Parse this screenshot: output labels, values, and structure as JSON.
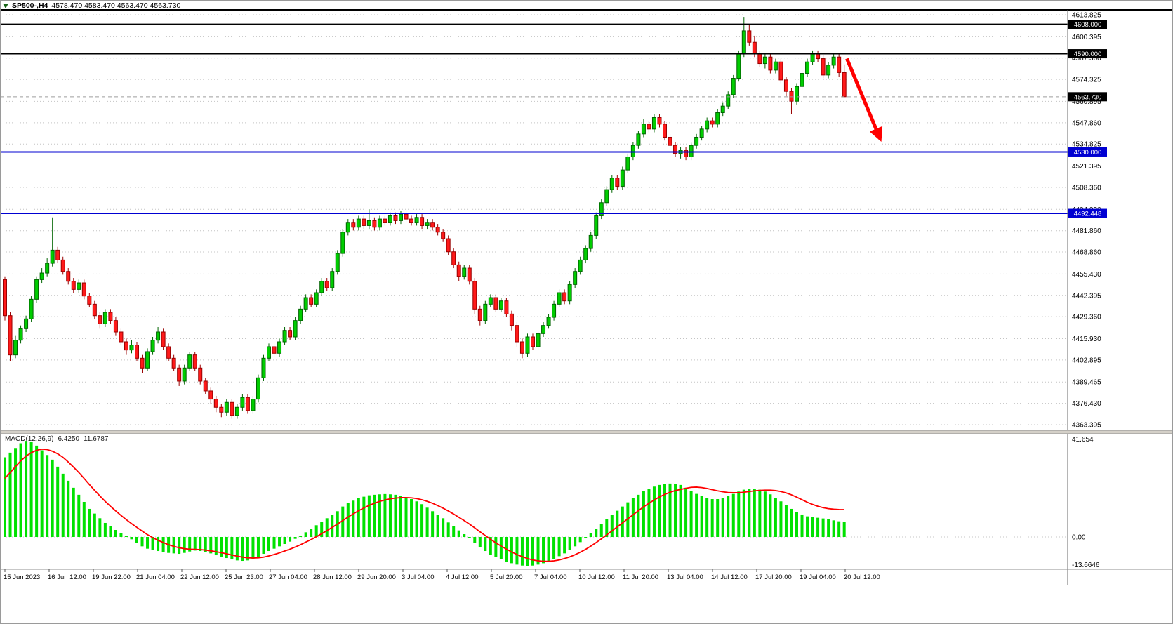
{
  "header": {
    "symbol_timeframe": "SP500-,H4",
    "ohlc_values": "4578.470 4583.470 4563.470 4563.730"
  },
  "macd_label": {
    "name": "MACD(12,26,9)",
    "macd_value": "6.4250",
    "signal_value": "11.6787"
  },
  "colors": {
    "background": "#FFFFFF",
    "grid": "#C4C4C4",
    "axis_text": "#000000",
    "bull_fill": "#00CD00",
    "bull_stroke": "#006400",
    "bear_fill": "#FF1A1A",
    "bear_stroke": "#990000",
    "macd_hist": "#00E100",
    "macd_signal": "#FF0000",
    "badge_text": "#FFFFFF",
    "splitter": "#D4D0C8",
    "frame": "#6B6B6B"
  },
  "chart_data": {
    "type": "candlestick",
    "symbol": "SP500-",
    "timeframe": "H4",
    "title": "SP500-,H4",
    "last_candle": {
      "open": 4578.47,
      "high": 4583.47,
      "low": 4563.47,
      "close": 4563.73
    },
    "price_axis": {
      "max": 4613.825,
      "min": 4363.395,
      "gridlines": [
        "4613.825",
        "4600.395",
        "4587.360",
        "4574.325",
        "4560.895",
        "4547.860",
        "4534.825",
        "4521.395",
        "4508.360",
        "4494.930",
        "4481.860",
        "4468.860",
        "4455.430",
        "4442.395",
        "4429.360",
        "4415.930",
        "4402.895",
        "4389.465",
        "4376.430",
        "4363.395"
      ]
    },
    "price_lines": [
      {
        "name": "resistance-line-4608",
        "price": 4608.0,
        "label": "4608.000",
        "color": "#000000",
        "badge_color": "#000000",
        "width": 2,
        "style": "solid"
      },
      {
        "name": "resistance-line-4590",
        "price": 4590.0,
        "label": "4590.000",
        "color": "#000000",
        "badge_color": "#000000",
        "width": 2,
        "style": "solid"
      },
      {
        "name": "bid-price-line",
        "price": 4563.73,
        "label": "4563.730",
        "color": "#9E9E9E",
        "badge_color": "#000000",
        "width": 1,
        "style": "dashed"
      },
      {
        "name": "support-line-4530",
        "price": 4530.0,
        "label": "4530.000",
        "color": "#0000D2",
        "badge_color": "#0000D2",
        "width": 2,
        "style": "solid"
      },
      {
        "name": "support-line-4492",
        "price": 4492.448,
        "label": "4492.448",
        "color": "#0000D2",
        "badge_color": "#0000D2",
        "width": 2,
        "style": "solid"
      }
    ],
    "time_labels": [
      "15 Jun 2023",
      "16 Jun 12:00",
      "19 Jun 22:00",
      "21 Jun 04:00",
      "22 Jun 12:00",
      "25 Jun 23:00",
      "27 Jun 04:00",
      "28 Jun 12:00",
      "29 Jun 20:00",
      "3 Jul 04:00",
      "4 Jul 12:00",
      "5 Jul 20:00",
      "7 Jul 04:00",
      "10 Jul 12:00",
      "11 Jul 20:00",
      "13 Jul 04:00",
      "14 Jul 12:00",
      "17 Jul 20:00",
      "19 Jul 04:00",
      "20 Jul 12:00"
    ],
    "candles": [
      [
        4452,
        4454,
        4427,
        4430
      ],
      [
        4430,
        4432,
        4402,
        4406
      ],
      [
        4406,
        4418,
        4404,
        4415
      ],
      [
        4415,
        4424,
        4413,
        4422
      ],
      [
        4422,
        4430,
        4420,
        4428
      ],
      [
        4428,
        4442,
        4426,
        4440
      ],
      [
        4440,
        4454,
        4438,
        4452
      ],
      [
        4452,
        4459,
        4450,
        4456
      ],
      [
        4456,
        4465,
        4454,
        4462
      ],
      [
        4462,
        4490,
        4460,
        4470
      ],
      [
        4470,
        4472,
        4462,
        4464
      ],
      [
        4464,
        4466,
        4455,
        4457
      ],
      [
        4457,
        4459,
        4449,
        4451
      ],
      [
        4451,
        4453,
        4444,
        4446
      ],
      [
        4446,
        4452,
        4444,
        4450
      ],
      [
        4450,
        4452,
        4440,
        4442
      ],
      [
        4442,
        4444,
        4435,
        4437
      ],
      [
        4437,
        4439,
        4428,
        4430
      ],
      [
        4430,
        4432,
        4422,
        4425
      ],
      [
        4425,
        4434,
        4423,
        4432
      ],
      [
        4432,
        4434,
        4425,
        4427
      ],
      [
        4427,
        4429,
        4418,
        4420
      ],
      [
        4420,
        4422,
        4412,
        4414
      ],
      [
        4414,
        4416,
        4406,
        4409
      ],
      [
        4409,
        4415,
        4407,
        4412
      ],
      [
        4412,
        4414,
        4402,
        4404
      ],
      [
        4404,
        4406,
        4395,
        4398
      ],
      [
        4398,
        4410,
        4396,
        4408
      ],
      [
        4408,
        4417,
        4406,
        4415
      ],
      [
        4415,
        4423,
        4413,
        4420
      ],
      [
        4420,
        4422,
        4409,
        4411
      ],
      [
        4411,
        4413,
        4402,
        4404
      ],
      [
        4404,
        4406,
        4396,
        4398
      ],
      [
        4398,
        4400,
        4387,
        4390
      ],
      [
        4390,
        4400,
        4388,
        4398
      ],
      [
        4398,
        4408,
        4396,
        4406
      ],
      [
        4406,
        4408,
        4396,
        4398
      ],
      [
        4398,
        4400,
        4388,
        4390
      ],
      [
        4390,
        4392,
        4382,
        4384
      ],
      [
        4384,
        4386,
        4376,
        4379
      ],
      [
        4379,
        4381,
        4371,
        4374
      ],
      [
        4374,
        4376,
        4368,
        4371
      ],
      [
        4371,
        4379,
        4369,
        4377
      ],
      [
        4377,
        4379,
        4367,
        4369
      ],
      [
        4369,
        4376,
        4367,
        4374
      ],
      [
        4374,
        4382,
        4372,
        4380
      ],
      [
        4380,
        4382,
        4370,
        4372
      ],
      [
        4372,
        4381,
        4370,
        4379
      ],
      [
        4379,
        4394,
        4377,
        4392
      ],
      [
        4392,
        4406,
        4390,
        4404
      ],
      [
        4404,
        4413,
        4402,
        4411
      ],
      [
        4411,
        4413,
        4405,
        4407
      ],
      [
        4407,
        4416,
        4405,
        4414
      ],
      [
        4414,
        4423,
        4412,
        4421
      ],
      [
        4421,
        4423,
        4415,
        4417
      ],
      [
        4417,
        4429,
        4415,
        4427
      ],
      [
        4427,
        4436,
        4425,
        4434
      ],
      [
        4434,
        4443,
        4432,
        4441
      ],
      [
        4441,
        4443,
        4435,
        4437
      ],
      [
        4437,
        4446,
        4435,
        4444
      ],
      [
        4444,
        4453,
        4442,
        4451
      ],
      [
        4451,
        4453,
        4445,
        4447
      ],
      [
        4447,
        4459,
        4445,
        4457
      ],
      [
        4457,
        4470,
        4455,
        4468
      ],
      [
        4468,
        4483,
        4466,
        4481
      ],
      [
        4481,
        4489,
        4479,
        4487
      ],
      [
        4487,
        4489,
        4482,
        4484
      ],
      [
        4484,
        4491,
        4482,
        4489
      ],
      [
        4489,
        4491,
        4483,
        4485
      ],
      [
        4485,
        4495,
        4483,
        4488
      ],
      [
        4488,
        4490,
        4482,
        4484
      ],
      [
        4484,
        4491,
        4482,
        4489
      ],
      [
        4489,
        4491,
        4485,
        4487
      ],
      [
        4487,
        4493,
        4485,
        4491
      ],
      [
        4491,
        4493,
        4486,
        4488
      ],
      [
        4488,
        4494,
        4486,
        4492
      ],
      [
        4492,
        4494,
        4487,
        4489
      ],
      [
        4489,
        4491,
        4485,
        4487
      ],
      [
        4487,
        4492,
        4485,
        4490
      ],
      [
        4490,
        4492,
        4483,
        4485
      ],
      [
        4485,
        4489,
        4483,
        4487
      ],
      [
        4487,
        4489,
        4482,
        4484
      ],
      [
        4484,
        4486,
        4479,
        4481
      ],
      [
        4481,
        4483,
        4475,
        4477
      ],
      [
        4477,
        4479,
        4467,
        4469
      ],
      [
        4469,
        4471,
        4459,
        4461
      ],
      [
        4461,
        4463,
        4451,
        4454
      ],
      [
        4454,
        4461,
        4452,
        4459
      ],
      [
        4459,
        4461,
        4449,
        4451
      ],
      [
        4451,
        4453,
        4431,
        4434
      ],
      [
        4434,
        4436,
        4424,
        4427
      ],
      [
        4427,
        4439,
        4425,
        4437
      ],
      [
        4437,
        4443,
        4435,
        4441
      ],
      [
        4441,
        4443,
        4432,
        4434
      ],
      [
        4434,
        4441,
        4432,
        4439
      ],
      [
        4439,
        4441,
        4429,
        4431
      ],
      [
        4431,
        4433,
        4421,
        4424
      ],
      [
        4424,
        4426,
        4411,
        4414
      ],
      [
        4414,
        4416,
        4404,
        4407
      ],
      [
        4407,
        4419,
        4405,
        4417
      ],
      [
        4417,
        4419,
        4409,
        4411
      ],
      [
        4411,
        4421,
        4409,
        4419
      ],
      [
        4419,
        4426,
        4417,
        4424
      ],
      [
        4424,
        4431,
        4422,
        4429
      ],
      [
        4429,
        4439,
        4427,
        4437
      ],
      [
        4437,
        4446,
        4435,
        4444
      ],
      [
        4444,
        4446,
        4437,
        4439
      ],
      [
        4439,
        4451,
        4437,
        4449
      ],
      [
        4449,
        4459,
        4447,
        4457
      ],
      [
        4457,
        4466,
        4455,
        4464
      ],
      [
        4464,
        4473,
        4462,
        4471
      ],
      [
        4471,
        4481,
        4469,
        4479
      ],
      [
        4479,
        4493,
        4477,
        4491
      ],
      [
        4491,
        4501,
        4489,
        4499
      ],
      [
        4499,
        4509,
        4497,
        4507
      ],
      [
        4507,
        4516,
        4505,
        4514
      ],
      [
        4514,
        4516,
        4507,
        4509
      ],
      [
        4509,
        4521,
        4507,
        4519
      ],
      [
        4519,
        4529,
        4517,
        4527
      ],
      [
        4527,
        4536,
        4525,
        4534
      ],
      [
        4534,
        4543,
        4532,
        4541
      ],
      [
        4541,
        4550,
        4539,
        4547
      ],
      [
        4547,
        4549,
        4542,
        4544
      ],
      [
        4544,
        4553,
        4542,
        4551
      ],
      [
        4551,
        4553,
        4545,
        4547
      ],
      [
        4547,
        4549,
        4537,
        4539
      ],
      [
        4539,
        4541,
        4532,
        4534
      ],
      [
        4534,
        4536,
        4527,
        4529
      ],
      [
        4529,
        4533,
        4526,
        4531
      ],
      [
        4531,
        4533,
        4525,
        4527
      ],
      [
        4527,
        4536,
        4525,
        4534
      ],
      [
        4534,
        4541,
        4532,
        4539
      ],
      [
        4539,
        4546,
        4537,
        4544
      ],
      [
        4544,
        4551,
        4542,
        4549
      ],
      [
        4549,
        4551,
        4545,
        4547
      ],
      [
        4547,
        4556,
        4545,
        4554
      ],
      [
        4554,
        4560,
        4552,
        4558
      ],
      [
        4558,
        4567,
        4556,
        4565
      ],
      [
        4565,
        4577,
        4563,
        4575
      ],
      [
        4575,
        4592,
        4573,
        4590
      ],
      [
        4590,
        4612.5,
        4588,
        4604
      ],
      [
        4604,
        4608,
        4595,
        4597
      ],
      [
        4597,
        4601,
        4588,
        4590
      ],
      [
        4590,
        4592,
        4582,
        4584
      ],
      [
        4584,
        4590,
        4581,
        4588
      ],
      [
        4588,
        4590,
        4578,
        4580
      ],
      [
        4580,
        4587,
        4578,
        4585
      ],
      [
        4585,
        4587,
        4572,
        4574
      ],
      [
        4574,
        4576,
        4564,
        4567
      ],
      [
        4567,
        4569,
        4553,
        4561
      ],
      [
        4561,
        4572,
        4559,
        4570
      ],
      [
        4570,
        4580,
        4568,
        4578
      ],
      [
        4578,
        4587,
        4576,
        4585
      ],
      [
        4585,
        4592,
        4583,
        4590
      ],
      [
        4590,
        4592,
        4585,
        4587
      ],
      [
        4587,
        4589,
        4575,
        4577
      ],
      [
        4577,
        4585,
        4575,
        4583
      ],
      [
        4583,
        4590,
        4581,
        4588
      ],
      [
        4588,
        4590,
        4576,
        4578.5
      ],
      [
        4578.47,
        4583.47,
        4563.47,
        4563.73
      ]
    ],
    "macd": {
      "params": "12,26,9",
      "current_macd": 6.425,
      "current_signal": 11.6787,
      "histogram": [
        34,
        36,
        38,
        40,
        41,
        40.5,
        39,
        37,
        35,
        33,
        30,
        27,
        24,
        21,
        18,
        15,
        12,
        10,
        8,
        6,
        4.5,
        3,
        1.5,
        0.3,
        -1,
        -2.5,
        -4,
        -5,
        -5.5,
        -6,
        -6.5,
        -6.8,
        -7,
        -7.2,
        -6.8,
        -6.2,
        -5.8,
        -6,
        -6.5,
        -7,
        -7.8,
        -8.5,
        -9,
        -9.6,
        -10,
        -10.2,
        -10,
        -9.5,
        -8.5,
        -7.2,
        -6,
        -5,
        -4,
        -3,
        -2,
        -0.8,
        0.5,
        2,
        3.5,
        5,
        6.5,
        8,
        9.5,
        11,
        13,
        14.5,
        15.5,
        16.5,
        17.2,
        17.8,
        18,
        18.2,
        18.3,
        18.2,
        18,
        17.6,
        17,
        16.2,
        15.2,
        14,
        12.5,
        11,
        9.5,
        8,
        6.2,
        4.5,
        2.8,
        1.2,
        -0.5,
        -2.5,
        -4.5,
        -6,
        -7.5,
        -8.5,
        -9.5,
        -10.5,
        -11.2,
        -11.8,
        -12.2,
        -12.4,
        -12.2,
        -11.8,
        -11.2,
        -10.4,
        -9.4,
        -8.2,
        -7,
        -5.6,
        -4,
        -2.2,
        -0.4,
        1.5,
        3.5,
        5.5,
        7.5,
        9.5,
        11.2,
        13,
        14.8,
        16.5,
        18,
        19.5,
        20.5,
        21.5,
        22.2,
        22.6,
        22.8,
        22.6,
        22.2,
        21,
        19.6,
        18.4,
        17.4,
        16.6,
        16.2,
        16.2,
        16.6,
        17.4,
        18.4,
        19.4,
        20.2,
        20.6,
        20.6,
        20.2,
        19.4,
        18.2,
        16.8,
        15.2,
        13.6,
        12,
        10.6,
        9.6,
        8.8,
        8.4,
        8.2,
        7.9,
        7.5,
        7.1,
        6.7,
        6.425
      ],
      "signal": [
        25,
        27.5,
        30,
        32.5,
        34.5,
        36,
        37,
        37.5,
        37.3,
        36.6,
        35.5,
        34,
        32,
        29.8,
        27.5,
        25,
        22.4,
        19.9,
        17.5,
        15.2,
        13.1,
        11.1,
        9.2,
        7.4,
        5.7,
        4.1,
        2.5,
        1,
        -0.3,
        -1.4,
        -2.4,
        -3.3,
        -4,
        -4.6,
        -5,
        -5.2,
        -5.3,
        -5.4,
        -5.6,
        -5.9,
        -6.3,
        -6.7,
        -7.2,
        -7.7,
        -8.2,
        -8.6,
        -8.9,
        -9,
        -8.9,
        -8.6,
        -8.1,
        -7.5,
        -6.8,
        -6,
        -5.2,
        -4.3,
        -3.3,
        -2.2,
        -1.1,
        0.1,
        1.4,
        2.7,
        4.1,
        5.5,
        7,
        8.5,
        9.9,
        11.2,
        12.4,
        13.5,
        14.4,
        15.2,
        15.8,
        16.3,
        16.6,
        16.8,
        16.8,
        16.7,
        16.4,
        15.9,
        15.2,
        14.4,
        13.4,
        12.3,
        11.1,
        9.8,
        8.4,
        7,
        5.5,
        3.9,
        2.2,
        0.6,
        -1,
        -2.5,
        -3.9,
        -5.2,
        -6.4,
        -7.5,
        -8.4,
        -9.2,
        -9.8,
        -10.2,
        -10.4,
        -10.4,
        -10.2,
        -9.8,
        -9.2,
        -8.5,
        -7.6,
        -6.5,
        -5.3,
        -3.9,
        -2.4,
        -0.8,
        0.9,
        2.6,
        4.3,
        6,
        7.8,
        9.5,
        11.2,
        12.9,
        14.4,
        15.8,
        17.1,
        18.2,
        19.1,
        19.8,
        20.3,
        20.8,
        21.2,
        21.3,
        21.1,
        20.7,
        20.2,
        19.7,
        19.3,
        19,
        18.9,
        18.9,
        19.1,
        19.4,
        19.7,
        19.9,
        20,
        20,
        19.8,
        19.4,
        18.8,
        18,
        17,
        15.9,
        14.8,
        13.9,
        13.1,
        12.5,
        12.1,
        11.85,
        11.7,
        11.6787
      ]
    },
    "macd_axis": {
      "max": 41.654,
      "min": -13.6646,
      "max_label": "41.654",
      "zero_label": "0.00",
      "min_label": "-13.6646"
    },
    "annotation": {
      "type": "arrow-down",
      "color": "#FF0000",
      "from": {
        "bar": 159.5,
        "price": 4587
      },
      "to": {
        "bar": 165.8,
        "price": 4538
      }
    }
  }
}
